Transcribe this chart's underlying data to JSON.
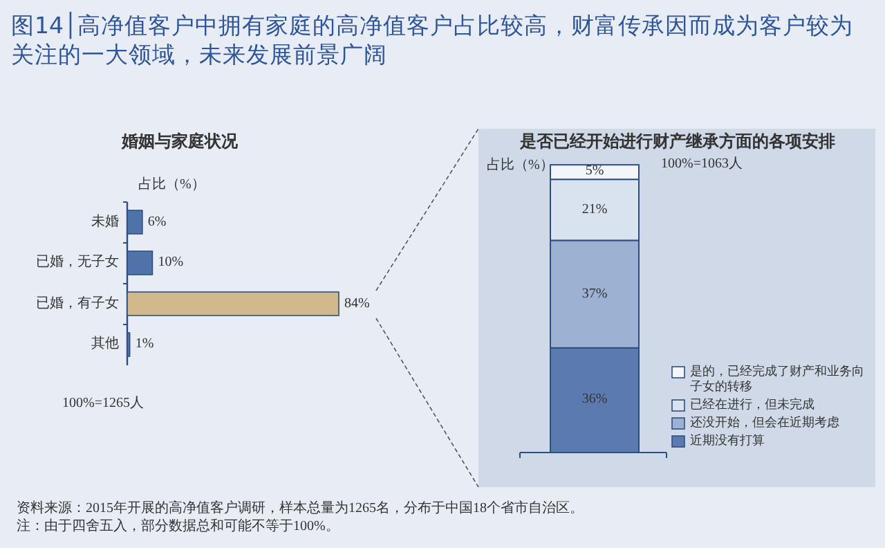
{
  "chart_data": [
    {
      "type": "bar",
      "orientation": "horizontal",
      "title": "图14│高净值客户中拥有家庭的高净值客户占比较高，财富传承因而成为客户较为关注的一大领域，未来发展前景广阔",
      "subtitle": "婚姻与家庭状况",
      "ylabel": "占比（%）",
      "categories": [
        "未婚",
        "已婚，无子女",
        "已婚，有子女",
        "其他"
      ],
      "values": [
        6,
        10,
        84,
        1
      ],
      "value_labels": [
        "6%",
        "10%",
        "84%",
        "1%"
      ],
      "colors": [
        "#4f73a8",
        "#4f73a8",
        "#d2b98c",
        "#4f73a8"
      ],
      "annotations": [
        "100%=1265人"
      ]
    },
    {
      "type": "bar",
      "stacked": true,
      "title": "是否已经开始进行财产继承方面的各项安排",
      "ylabel": "占比（%）",
      "categories": [
        null
      ],
      "legend": "bottom right",
      "series": [
        {
          "name": "近期没有打算",
          "color": "#5b7bb0",
          "values": [
            36
          ],
          "value_labels": [
            "36%"
          ]
        },
        {
          "name": "还没开始，但会在近期考虑",
          "color": "#9db2d2",
          "values": [
            37
          ],
          "value_labels": [
            "37%"
          ]
        },
        {
          "name": "已经在进行，但未完成",
          "color": "#d9e2ef",
          "values": [
            21
          ],
          "value_labels": [
            "21%"
          ]
        },
        {
          "name": "是的，已经完成了财产和业务向子女的转移",
          "color": "#f2f5fa",
          "values": [
            5
          ],
          "value_labels": [
            "5%"
          ]
        }
      ],
      "annotations": [
        "100%=1063人",
        "资料来源：2015年开展的高净值客户调研，样本总量为1265名，分布于中国18个省市自治区。",
        "注：由于四舍五入，部分数据总和可能不等于100%。"
      ]
    }
  ]
}
